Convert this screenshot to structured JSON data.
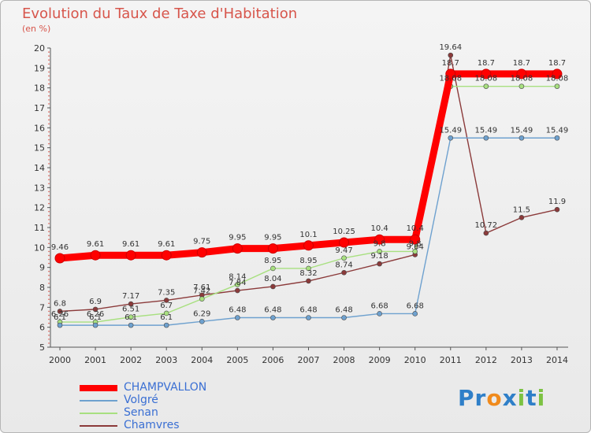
{
  "chart_data": {
    "type": "line",
    "title": "Evolution du Taux de Taxe d'Habitation",
    "subtitle": "(en %)",
    "xlabel": "",
    "ylabel": "",
    "ylim": [
      5,
      20
    ],
    "yticks": [
      5,
      6,
      7,
      8,
      9,
      10,
      11,
      12,
      13,
      14,
      15,
      16,
      17,
      18,
      19,
      20
    ],
    "categories": [
      "2000",
      "2001",
      "2002",
      "2003",
      "2004",
      "2005",
      "2006",
      "2007",
      "2008",
      "2009",
      "2010",
      "2011",
      "2012",
      "2013",
      "2014"
    ],
    "grid": false,
    "legend_position": "bottom-left",
    "series": [
      {
        "name": "CHAMPVALLON",
        "color": "#ff0000",
        "values": [
          9.46,
          9.61,
          9.61,
          9.61,
          9.75,
          9.95,
          9.95,
          10.1,
          10.25,
          10.4,
          10.4,
          18.7,
          18.7,
          18.7,
          18.7
        ],
        "labels": [
          "9.46",
          "9.61",
          "9.61",
          "9.61",
          "9.75",
          "9.95",
          "9.95",
          "10.1",
          "10.25",
          "10.4",
          "10.4",
          "18.7",
          "18.7",
          "18.7",
          "18.7"
        ]
      },
      {
        "name": "Volgré",
        "color": "#6ea1cf",
        "values": [
          6.1,
          6.1,
          6.1,
          6.1,
          6.29,
          6.48,
          6.48,
          6.48,
          6.48,
          6.68,
          6.68,
          15.49,
          15.49,
          15.49,
          15.49
        ],
        "labels": [
          "6.1",
          "6.1",
          "6.1",
          "6.1",
          "6.29",
          "6.48",
          "6.48",
          "6.48",
          "6.48",
          "6.68",
          "6.68",
          "15.49",
          "15.49",
          "15.49",
          "15.49"
        ]
      },
      {
        "name": "Senan",
        "color": "#a8e080",
        "values": [
          6.26,
          6.26,
          6.51,
          6.7,
          7.42,
          8.14,
          8.95,
          8.95,
          9.47,
          9.8,
          9.8,
          18.08,
          18.08,
          18.08,
          18.08
        ],
        "labels": [
          "6.26",
          "6.26",
          "6.51",
          "6.7",
          "7.42",
          "8.14",
          "8.95",
          "8.95",
          "9.47",
          "9.8",
          "9.8",
          "18.08",
          "18.08",
          "18.08",
          "18.08"
        ]
      },
      {
        "name": "Chamvres",
        "color": "#8b3a3a",
        "values": [
          6.8,
          6.9,
          7.17,
          7.35,
          7.61,
          7.84,
          8.04,
          8.32,
          8.74,
          9.18,
          9.64,
          19.64,
          10.72,
          11.5,
          11.9
        ],
        "labels": [
          "6.8",
          "6.9",
          "7.17",
          "7.35",
          "7.61",
          "7.84",
          "8.04",
          "8.32",
          "8.74",
          "9.18",
          "9.64",
          "19.64",
          "10.72",
          "11.5",
          "11.9"
        ]
      }
    ]
  },
  "logo": {
    "letters": [
      "P",
      "r",
      "o",
      "x",
      "i",
      "t",
      "i"
    ],
    "colors": [
      "#2f7fc8",
      "#2f7fc8",
      "#f08a1c",
      "#2f7fc8",
      "#7cc242",
      "#2f7fc8",
      "#7cc242"
    ]
  }
}
